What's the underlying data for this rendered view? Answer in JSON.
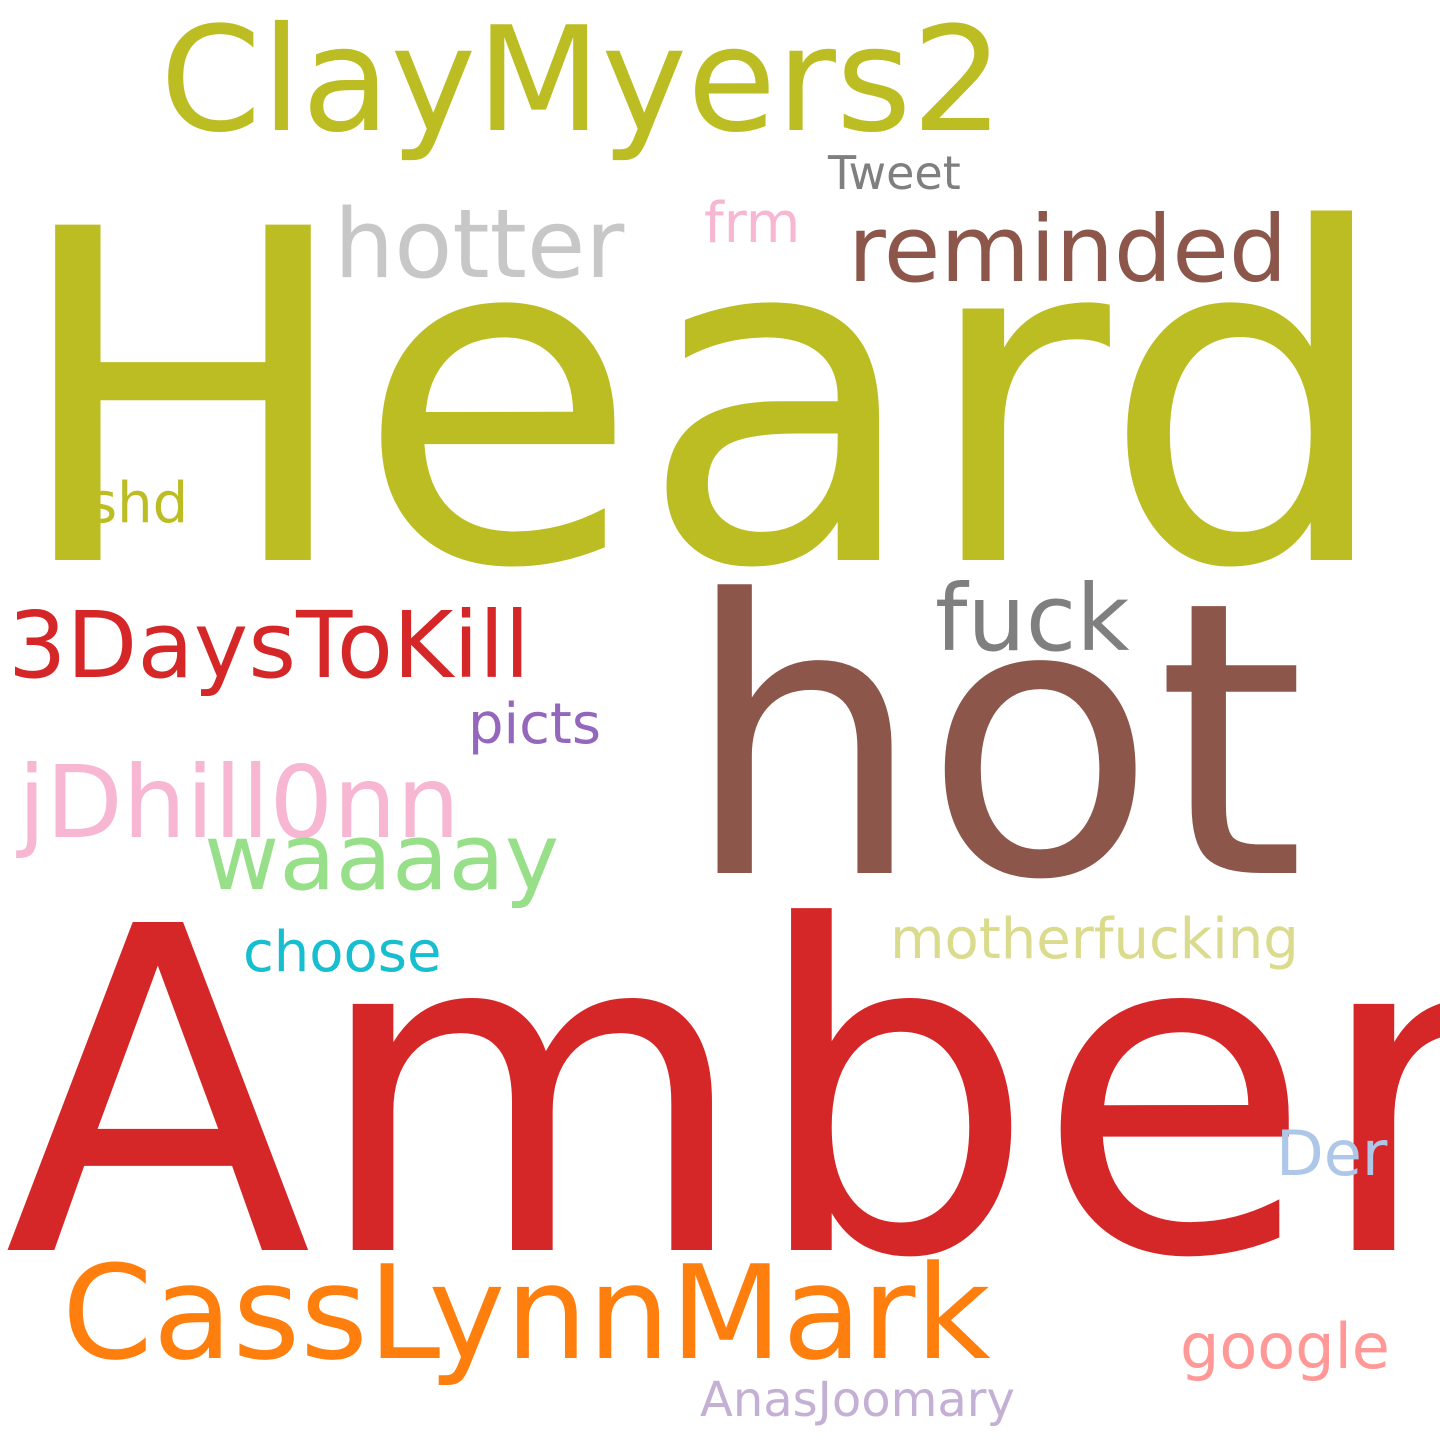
{
  "words": {
    "claymyers2": {
      "text": "ClayMyers2",
      "color": "#bcbd22"
    },
    "heard": {
      "text": "Heard",
      "color": "#bcbd22"
    },
    "tweet": {
      "text": "Tweet",
      "color": "#7f7f7f"
    },
    "hotter": {
      "text": "hotter",
      "color": "#c7c7c7"
    },
    "frm": {
      "text": "frm",
      "color": "#f7b6d2"
    },
    "reminded": {
      "text": "reminded",
      "color": "#8c564b"
    },
    "shd": {
      "text": "shd",
      "color": "#bcbd22"
    },
    "hot": {
      "text": "hot",
      "color": "#8c564b"
    },
    "fuck": {
      "text": "fuck",
      "color": "#7f7f7f"
    },
    "threedays": {
      "text": "3DaysToKill",
      "color": "#d62728"
    },
    "picts": {
      "text": "picts",
      "color": "#9467bd"
    },
    "jdhill": {
      "text": "jDhill0nn",
      "color": "#f7b6d2"
    },
    "waaaay": {
      "text": "waaaay",
      "color": "#98df8a"
    },
    "choose": {
      "text": "choose",
      "color": "#17becf"
    },
    "motherfucking": {
      "text": "motherfucking",
      "color": "#dbdb8d"
    },
    "amber": {
      "text": "Amber",
      "color": "#d62728"
    },
    "der": {
      "text": "Der",
      "color": "#aec7e8"
    },
    "casslynnmark": {
      "text": "CassLynnMark",
      "color": "#ff7f0e"
    },
    "google": {
      "text": "google",
      "color": "#ff9896"
    },
    "anasjoomary": {
      "text": "AnasJoomary",
      "color": "#c5b0d5"
    }
  }
}
